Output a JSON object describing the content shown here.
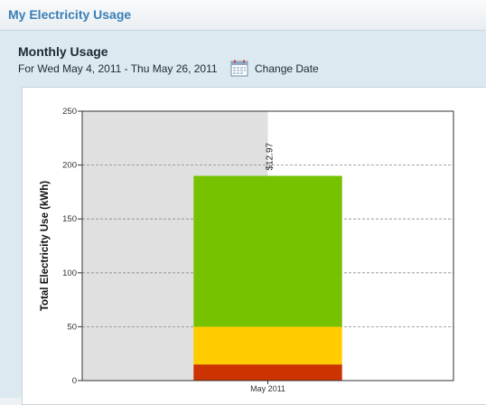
{
  "header": {
    "title": "My Electricity Usage"
  },
  "usage": {
    "section_title": "Monthly Usage",
    "date_range": "For Wed May 4, 2011 - Thu May 26, 2011",
    "calendar_icon": "calendar-icon",
    "change_date_label": "Change Date"
  },
  "chart_data": {
    "type": "bar",
    "stacked": true,
    "categories": [
      "May 2011"
    ],
    "series": [
      {
        "values": [
          15
        ],
        "color": "#cc3300"
      },
      {
        "values": [
          35
        ],
        "color": "#ffcc00"
      },
      {
        "values": [
          140
        ],
        "color": "#77c200"
      }
    ],
    "total_label": "$12.97",
    "ylabel": "Total Electricity Use (kWh)",
    "ylim": [
      0,
      250
    ],
    "yticks": [
      0,
      50,
      100,
      150,
      200,
      250
    ],
    "grid": true,
    "shaded_region": {
      "color": "#e0e0e0"
    }
  }
}
